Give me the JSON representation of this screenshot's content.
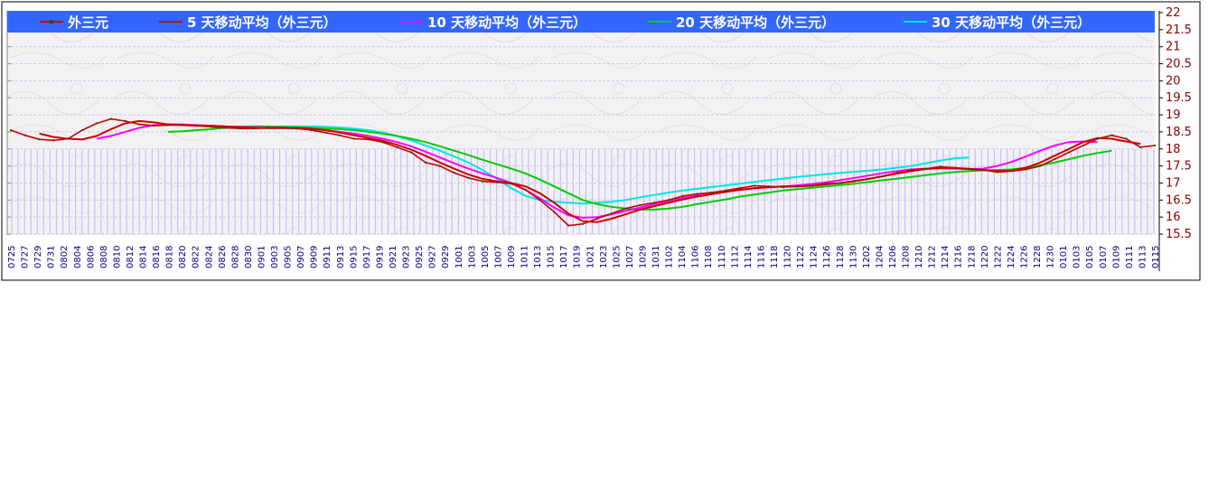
{
  "chart_data": {
    "type": "line",
    "title": "",
    "xlabel": "",
    "ylabel": "",
    "ylim": [
      15.5,
      22
    ],
    "y_ticks": [
      "22",
      "21.5",
      "21",
      "20.5",
      "20",
      "19.5",
      "19",
      "18.5",
      "18",
      "17.5",
      "17",
      "16.5",
      "16",
      "15.5"
    ],
    "x_ticks": [
      "0725",
      "0727",
      "0729",
      "0731",
      "0802",
      "0804",
      "0806",
      "0808",
      "0810",
      "0812",
      "0814",
      "0816",
      "0818",
      "0820",
      "0822",
      "0824",
      "0826",
      "0828",
      "0830",
      "0901",
      "0903",
      "0905",
      "0907",
      "0909",
      "0911",
      "0913",
      "0915",
      "0917",
      "0919",
      "0921",
      "0923",
      "0925",
      "0927",
      "0929",
      "1001",
      "1003",
      "1005",
      "1007",
      "1009",
      "1011",
      "1013",
      "1015",
      "1017",
      "1019",
      "1021",
      "1023",
      "1025",
      "1027",
      "1029",
      "1031",
      "1102",
      "1104",
      "1106",
      "1108",
      "1110",
      "1112",
      "1114",
      "1116",
      "1118",
      "1120",
      "1122",
      "1124",
      "1126",
      "1128",
      "1130",
      "1202",
      "1204",
      "1206",
      "1208",
      "1210",
      "1212",
      "1214",
      "1216",
      "1218",
      "1220",
      "1222",
      "1224",
      "1226",
      "1228",
      "1230",
      "0101",
      "0103",
      "0105",
      "0107",
      "0109",
      "0111",
      "0113",
      "0115"
    ],
    "grid": true,
    "legend_position": "top",
    "legend_bg": "#3366ff",
    "series": [
      {
        "name": "外三元",
        "color": "#cc0000",
        "marker_color": "#006400",
        "values": [
          18.55,
          18.4,
          18.28,
          18.25,
          18.3,
          18.55,
          18.75,
          18.88,
          18.82,
          18.72,
          18.68,
          18.7,
          18.7,
          18.68,
          18.65,
          18.62,
          18.6,
          18.6,
          18.62,
          18.62,
          18.6,
          18.55,
          18.48,
          18.4,
          18.3,
          18.28,
          18.2,
          18.05,
          17.9,
          17.6,
          17.5,
          17.3,
          17.15,
          17.05,
          17.02,
          16.98,
          16.8,
          16.5,
          16.15,
          15.75,
          15.8,
          15.95,
          16.1,
          16.25,
          16.35,
          16.42,
          16.5,
          16.62,
          16.68,
          16.72,
          16.78,
          16.85,
          16.92,
          16.9,
          16.88,
          16.9,
          16.92,
          16.98,
          17.0,
          17.05,
          17.12,
          17.2,
          17.3,
          17.38,
          17.42,
          17.48,
          17.45,
          17.42,
          17.38,
          17.32,
          17.35,
          17.4,
          17.5,
          17.7,
          17.9,
          18.1,
          18.3,
          18.4,
          18.3,
          18.05,
          18.1
        ]
      },
      {
        "name": "5 天移动平均（外三元）",
        "color": "#cc0000",
        "start": 2,
        "values": [
          18.45,
          18.35,
          18.3,
          18.28,
          18.38,
          18.58,
          18.75,
          18.82,
          18.78,
          18.72,
          18.7,
          18.68,
          18.68,
          18.66,
          18.64,
          18.62,
          18.61,
          18.61,
          18.61,
          18.59,
          18.55,
          18.48,
          18.4,
          18.32,
          18.24,
          18.12,
          17.98,
          17.8,
          17.6,
          17.42,
          17.25,
          17.12,
          17.05,
          17.0,
          16.9,
          16.7,
          16.42,
          16.1,
          15.88,
          15.85,
          15.95,
          16.08,
          16.22,
          16.32,
          16.42,
          16.52,
          16.6,
          16.67,
          16.74,
          16.8,
          16.85,
          16.88,
          16.9,
          16.9,
          16.92,
          16.96,
          17.0,
          17.06,
          17.12,
          17.2,
          17.28,
          17.35,
          17.41,
          17.44,
          17.44,
          17.41,
          17.38,
          17.35,
          17.36,
          17.45,
          17.6,
          17.8,
          18.0,
          18.2,
          18.32,
          18.3,
          18.22,
          18.15
        ]
      },
      {
        "name": "10 天移动平均（外三元）",
        "color": "#ff00ff",
        "start": 6,
        "values": [
          18.3,
          18.38,
          18.5,
          18.62,
          18.7,
          18.72,
          18.72,
          18.7,
          18.68,
          18.66,
          18.65,
          18.64,
          18.63,
          18.62,
          18.6,
          18.58,
          18.55,
          18.5,
          18.45,
          18.38,
          18.3,
          18.2,
          18.08,
          17.92,
          17.75,
          17.58,
          17.42,
          17.28,
          17.15,
          17.0,
          16.8,
          16.55,
          16.28,
          16.05,
          15.98,
          16.0,
          16.08,
          16.18,
          16.28,
          16.38,
          16.48,
          16.56,
          16.64,
          16.7,
          16.76,
          16.8,
          16.84,
          16.87,
          16.9,
          16.93,
          16.97,
          17.02,
          17.08,
          17.15,
          17.22,
          17.29,
          17.35,
          17.4,
          17.42,
          17.43,
          17.42,
          17.41,
          17.42,
          17.5,
          17.62,
          17.78,
          17.95,
          18.1,
          18.2,
          18.22,
          18.2
        ]
      },
      {
        "name": "20 天移动平均（外三元）",
        "color": "#00cc00",
        "start": 11,
        "values": [
          18.5,
          18.52,
          18.55,
          18.58,
          18.62,
          18.65,
          18.66,
          18.66,
          18.65,
          18.64,
          18.62,
          18.6,
          18.58,
          18.55,
          18.5,
          18.45,
          18.38,
          18.3,
          18.2,
          18.08,
          17.95,
          17.82,
          17.68,
          17.55,
          17.42,
          17.28,
          17.1,
          16.9,
          16.7,
          16.5,
          16.38,
          16.3,
          16.25,
          16.22,
          16.22,
          16.25,
          16.3,
          16.38,
          16.45,
          16.52,
          16.6,
          16.66,
          16.72,
          16.78,
          16.82,
          16.86,
          16.9,
          16.94,
          16.98,
          17.03,
          17.08,
          17.13,
          17.18,
          17.23,
          17.28,
          17.32,
          17.35,
          17.37,
          17.38,
          17.4,
          17.45,
          17.52,
          17.6,
          17.7,
          17.8,
          17.88,
          17.95
        ]
      },
      {
        "name": "30 天移动平均（外三元）",
        "color": "#00e5e5",
        "start": 16,
        "values": [
          18.6,
          18.62,
          18.64,
          18.66,
          18.66,
          18.66,
          18.65,
          18.63,
          18.6,
          18.55,
          18.48,
          18.38,
          18.25,
          18.1,
          17.95,
          17.78,
          17.6,
          17.38,
          17.12,
          16.85,
          16.62,
          16.5,
          16.45,
          16.42,
          16.4,
          16.42,
          16.45,
          16.5,
          16.58,
          16.65,
          16.72,
          16.78,
          16.83,
          16.88,
          16.93,
          16.98,
          17.03,
          17.08,
          17.13,
          17.18,
          17.22,
          17.26,
          17.3,
          17.33,
          17.36,
          17.4,
          17.45,
          17.5,
          17.58,
          17.66,
          17.72,
          17.75
        ]
      }
    ]
  }
}
